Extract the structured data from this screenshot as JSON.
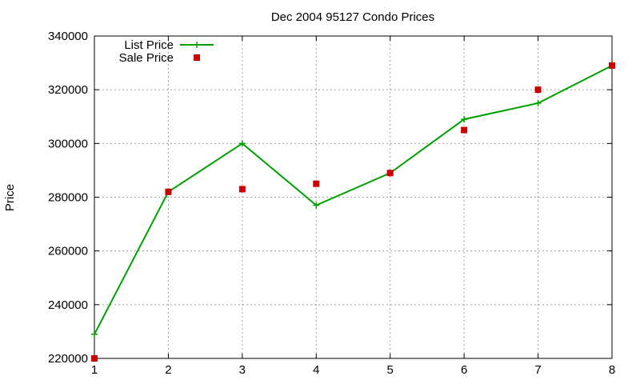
{
  "chart_data": {
    "type": "line",
    "title": "Dec 2004 95127 Condo Prices",
    "xlabel": "",
    "ylabel": "Price",
    "x": [
      1,
      2,
      3,
      4,
      5,
      6,
      7,
      8
    ],
    "xlim": [
      1,
      8
    ],
    "ylim": [
      220000,
      340000
    ],
    "xticks": [
      "1",
      "2",
      "3",
      "4",
      "5",
      "6",
      "7",
      "8"
    ],
    "yticks": [
      "220000",
      "240000",
      "260000",
      "280000",
      "300000",
      "320000",
      "340000"
    ],
    "grid": true,
    "legend_position": "top-left",
    "series": [
      {
        "name": "List Price",
        "style": "line+cross",
        "color": "#00a000",
        "values": [
          229000,
          282000,
          300000,
          277000,
          289000,
          309000,
          315000,
          329000
        ]
      },
      {
        "name": "Sale Price",
        "style": "square-marker",
        "color": "#cc0000",
        "values": [
          220000,
          282000,
          283000,
          285000,
          289000,
          305000,
          320000,
          329000
        ]
      }
    ]
  }
}
